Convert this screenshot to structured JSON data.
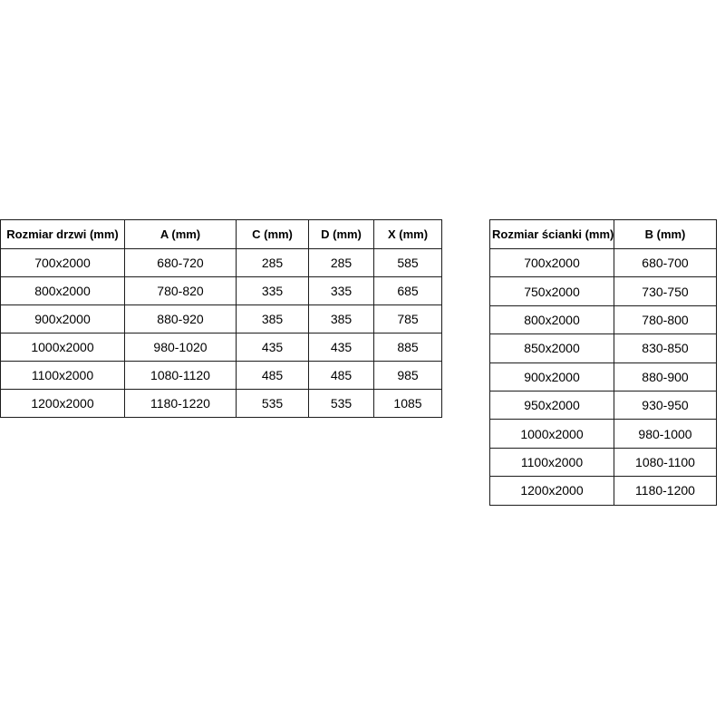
{
  "page": {
    "background_color": "#ffffff",
    "border_color": "#1c1c1c",
    "text_color": "#000000"
  },
  "tables": [
    {
      "name": "door-sizes",
      "headers": [
        "Rozmiar drzwi (mm)",
        "A (mm)",
        "C (mm)",
        "D (mm)",
        "X (mm)"
      ],
      "rows": [
        [
          "700x2000",
          "680-720",
          "285",
          "285",
          "585"
        ],
        [
          "800x2000",
          "780-820",
          "335",
          "335",
          "685"
        ],
        [
          "900x2000",
          "880-920",
          "385",
          "385",
          "785"
        ],
        [
          "1000x2000",
          "980-1020",
          "435",
          "435",
          "885"
        ],
        [
          "1100x2000",
          "1080-1120",
          "485",
          "485",
          "985"
        ],
        [
          "1200x2000",
          "1180-1220",
          "535",
          "535",
          "1085"
        ]
      ]
    },
    {
      "name": "wall-panel-sizes",
      "headers": [
        "Rozmiar ścianki (mm)",
        "B (mm)"
      ],
      "rows": [
        [
          "700x2000",
          "680-700"
        ],
        [
          "750x2000",
          "730-750"
        ],
        [
          "800x2000",
          "780-800"
        ],
        [
          "850x2000",
          "830-850"
        ],
        [
          "900x2000",
          "880-900"
        ],
        [
          "950x2000",
          "930-950"
        ],
        [
          "1000x2000",
          "980-1000"
        ],
        [
          "1100x2000",
          "1080-1100"
        ],
        [
          "1200x2000",
          "1180-1200"
        ]
      ]
    }
  ]
}
